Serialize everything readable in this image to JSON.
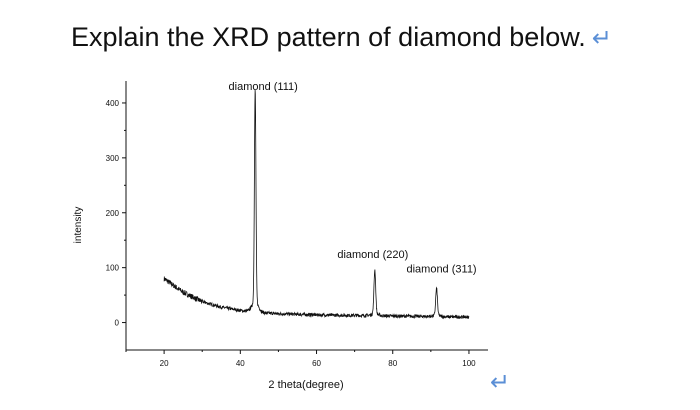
{
  "page": {
    "question": "Explain the XRD pattern of diamond below.",
    "return_glyph": "↵"
  },
  "chart_data": {
    "type": "line",
    "title": "",
    "xlabel": "2 theta(degree)",
    "ylabel": "intensity",
    "xlim": [
      10,
      105
    ],
    "ylim": [
      -50,
      440
    ],
    "xticks": [
      20,
      40,
      60,
      80,
      100
    ],
    "yticks": [
      0,
      100,
      200,
      300,
      400
    ],
    "xtick_labels": [
      "20",
      "40",
      "60",
      "80",
      "100"
    ],
    "ytick_labels": [
      "0",
      "100",
      "200",
      "300",
      "400"
    ],
    "grid": false,
    "line_color": "#111111",
    "baseline": [
      {
        "x": 20,
        "y": 80
      },
      {
        "x": 25,
        "y": 55
      },
      {
        "x": 30,
        "y": 38
      },
      {
        "x": 35,
        "y": 28
      },
      {
        "x": 40,
        "y": 22
      },
      {
        "x": 45,
        "y": 18
      },
      {
        "x": 50,
        "y": 16
      },
      {
        "x": 60,
        "y": 14
      },
      {
        "x": 70,
        "y": 13
      },
      {
        "x": 80,
        "y": 12
      },
      {
        "x": 90,
        "y": 11
      },
      {
        "x": 100,
        "y": 10
      }
    ],
    "peaks": [
      {
        "label": "diamond (111)",
        "x": 43.9,
        "y": 405
      },
      {
        "label": "diamond (220)",
        "x": 75.3,
        "y": 92
      },
      {
        "label": "diamond (311)",
        "x": 91.5,
        "y": 60
      }
    ]
  }
}
